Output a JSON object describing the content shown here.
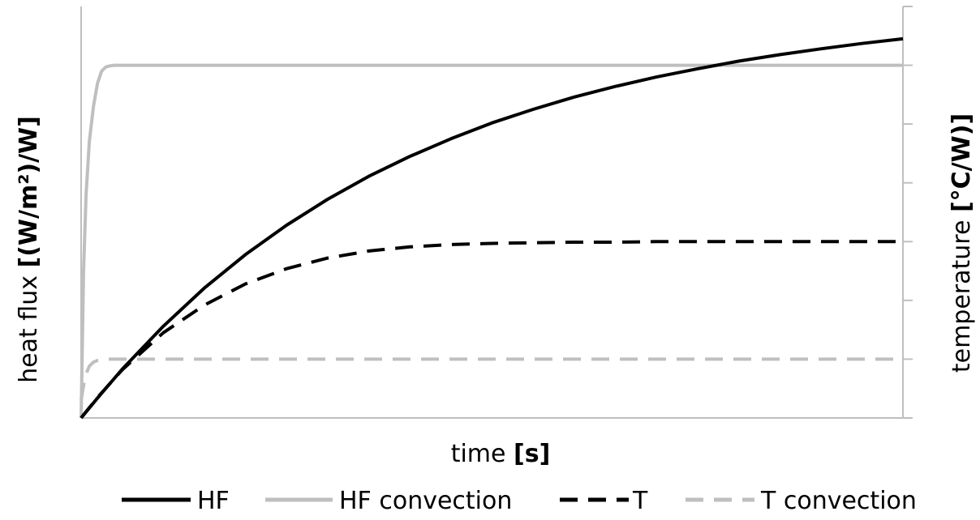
{
  "chart_data": {
    "type": "line",
    "title": "",
    "xlabel": {
      "prefix": "time ",
      "unit": "[s]"
    },
    "ylabel_left": {
      "prefix": "heat flux ",
      "unit": "[(W/m²)/W]"
    },
    "ylabel_right": {
      "prefix": "temperature ",
      "unit": "[°C/W)]"
    },
    "x_range": [
      0,
      100
    ],
    "y_range": [
      0,
      7
    ],
    "right_axis_ticks": 7,
    "grid": false,
    "legend_position": "bottom",
    "series": [
      {
        "name": "HF",
        "color": "#000000",
        "dash": "solid",
        "x": [
          0,
          2,
          5,
          10,
          15,
          20,
          25,
          30,
          35,
          40,
          45,
          50,
          55,
          60,
          65,
          70,
          75,
          80,
          85,
          90,
          95,
          100
        ],
        "values": [
          0,
          0.34,
          0.83,
          1.56,
          2.21,
          2.78,
          3.28,
          3.72,
          4.11,
          4.45,
          4.75,
          5.02,
          5.25,
          5.46,
          5.64,
          5.8,
          5.94,
          6.07,
          6.18,
          6.28,
          6.37,
          6.45
        ]
      },
      {
        "name": "HF convection",
        "color": "#bfbfbf",
        "dash": "solid",
        "x": [
          0,
          0.3,
          0.6,
          1,
          1.5,
          2,
          2.5,
          3,
          3.5,
          4,
          5,
          100
        ],
        "values": [
          0,
          2.5,
          3.8,
          4.7,
          5.3,
          5.7,
          5.9,
          5.97,
          5.99,
          6.0,
          6.0,
          6.0
        ]
      },
      {
        "name": "T",
        "color": "#000000",
        "dash": "dashed",
        "x": [
          0,
          2,
          5,
          10,
          15,
          20,
          25,
          30,
          35,
          40,
          45,
          50,
          55,
          60,
          65,
          70,
          75,
          80,
          85,
          90,
          95,
          100
        ],
        "values": [
          0,
          0.35,
          0.82,
          1.45,
          1.92,
          2.28,
          2.54,
          2.72,
          2.84,
          2.91,
          2.95,
          2.97,
          2.98,
          2.99,
          2.99,
          3.0,
          3.0,
          3.0,
          3.0,
          3.0,
          3.0,
          3.0
        ]
      },
      {
        "name": "T convection",
        "color": "#bfbfbf",
        "dash": "dashed",
        "x": [
          0,
          0.3,
          0.6,
          1,
          1.5,
          2,
          3,
          100
        ],
        "values": [
          0.3,
          0.55,
          0.75,
          0.88,
          0.95,
          0.98,
          1.0,
          1.0
        ]
      }
    ]
  }
}
